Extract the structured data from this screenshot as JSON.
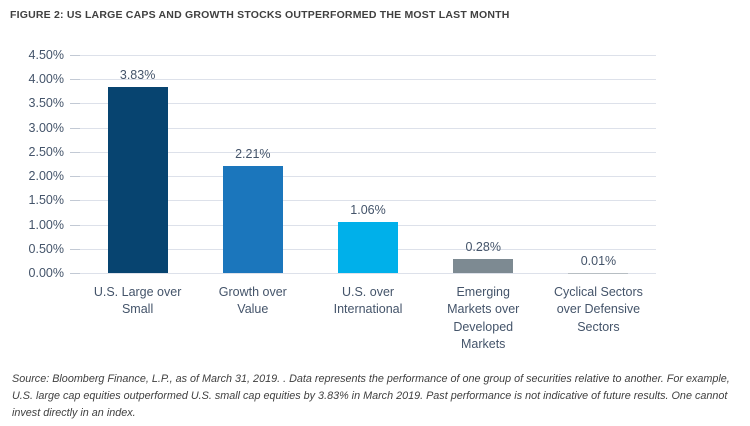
{
  "figure": {
    "title": "FIGURE 2: US LARGE CAPS AND GROWTH STOCKS OUTPERFORMED THE MOST LAST MONTH",
    "source_note": "Source: Bloomberg Finance, L.P., as of March 31, 2019. . Data represents the performance of one group of securities relative to another. For example, U.S. large cap equities outperformed U.S. small cap equities by 3.83% in March 2019. Past performance is not indicative of future results. One cannot invest directly in an index."
  },
  "chart_data": {
    "type": "bar",
    "title": "FIGURE 2: US LARGE CAPS AND GROWTH STOCKS OUTPERFORMED THE MOST LAST MONTH",
    "categories": [
      "U.S. Large over\nSmall",
      "Growth over\nValue",
      "U.S. over\nInternational",
      "Emerging\nMarkets over\nDeveloped\nMarkets",
      "Cyclical Sectors\nover Defensive\nSectors"
    ],
    "values": [
      3.83,
      2.21,
      1.06,
      0.28,
      0.01
    ],
    "data_labels": [
      "3.83%",
      "2.21%",
      "1.06%",
      "0.28%",
      "0.01%"
    ],
    "bar_colors": [
      "#074470",
      "#1b76bc",
      "#00b0ea",
      "#7d8a92",
      "#b7bec3"
    ],
    "xlabel": "",
    "ylabel": "",
    "ylim": [
      0,
      4.5
    ],
    "ytick_step": 0.5,
    "ytick_labels": [
      "0.00%",
      "0.50%",
      "1.00%",
      "1.50%",
      "2.00%",
      "2.50%",
      "3.00%",
      "3.50%",
      "4.00%",
      "4.50%"
    ],
    "grid": true,
    "legend": "none",
    "label_color": "#44546a",
    "gridline_color": "#dde1ea",
    "tick_color": "#c2c9d4"
  }
}
